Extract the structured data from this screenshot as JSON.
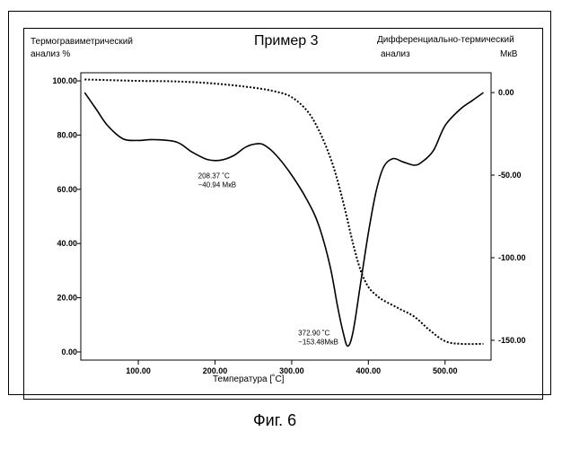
{
  "chart_data": {
    "type": "line",
    "title": "Пример 3",
    "xlabel": "Температура [˚C]",
    "ylabel_left": "Термогравиметрический анализ %",
    "ylabel_right": "Дифференциально-термический анализ",
    "right_unit": "МкВ",
    "xlim": [
      25,
      560
    ],
    "ylim_left": [
      -3,
      103
    ],
    "ylim_right": [
      -162,
      12
    ],
    "x_ticks": [
      100,
      200,
      300,
      400,
      500
    ],
    "x_tick_labels": [
      "100.00",
      "200.00",
      "300.00",
      "400.00",
      "500.00"
    ],
    "y_left_ticks": [
      0,
      20,
      40,
      60,
      80,
      100
    ],
    "y_left_tick_labels": [
      "0.00",
      "20.00",
      "40.00",
      "60.00",
      "80.00",
      "100.00"
    ],
    "y_right_ticks": [
      0,
      -50,
      -100,
      -150
    ],
    "y_right_tick_labels": [
      "0.00",
      "-50.00",
      "-100.00",
      "-150.00"
    ],
    "grid": false,
    "series": [
      {
        "axis": "left",
        "style": "dotted",
        "x": [
          30,
          60,
          100,
          150,
          200,
          250,
          280,
          300,
          320,
          335,
          350,
          360,
          370,
          380,
          390,
          400,
          410,
          420,
          440,
          460,
          480,
          500,
          520,
          550
        ],
        "y": [
          100.5,
          100.3,
          100,
          99.8,
          99,
          97.5,
          96,
          94,
          89,
          82,
          72,
          63,
          52,
          40,
          30,
          24,
          21,
          19,
          16,
          13,
          8,
          4,
          3,
          3
        ]
      },
      {
        "axis": "right",
        "style": "solid",
        "x": [
          30,
          45,
          60,
          80,
          100,
          120,
          150,
          170,
          190,
          208,
          225,
          240,
          255,
          265,
          280,
          300,
          320,
          335,
          350,
          360,
          367,
          373,
          380,
          390,
          400,
          410,
          420,
          432,
          445,
          460,
          470,
          485,
          500,
          520,
          535,
          550
        ],
        "y": [
          0,
          -10,
          -20,
          -28,
          -29,
          -28.5,
          -30,
          -36,
          -40.5,
          -40.9,
          -38,
          -33,
          -31,
          -32,
          -38,
          -50,
          -65,
          -80,
          -105,
          -130,
          -145,
          -153.5,
          -145,
          -115,
          -85,
          -60,
          -45,
          -40,
          -42,
          -44,
          -42,
          -35,
          -20,
          -10,
          -5,
          0
        ]
      }
    ],
    "annotations": [
      {
        "x": 208.37,
        "y": -40.94,
        "axis": "right",
        "line1": "208.37 ˚C",
        "line2": "−40.94 МкВ"
      },
      {
        "x": 372.9,
        "y": -153.48,
        "axis": "right",
        "line1": "372.90 ˚C",
        "line2": "−153.48МкВ"
      }
    ]
  },
  "caption": "Фиг. 6"
}
